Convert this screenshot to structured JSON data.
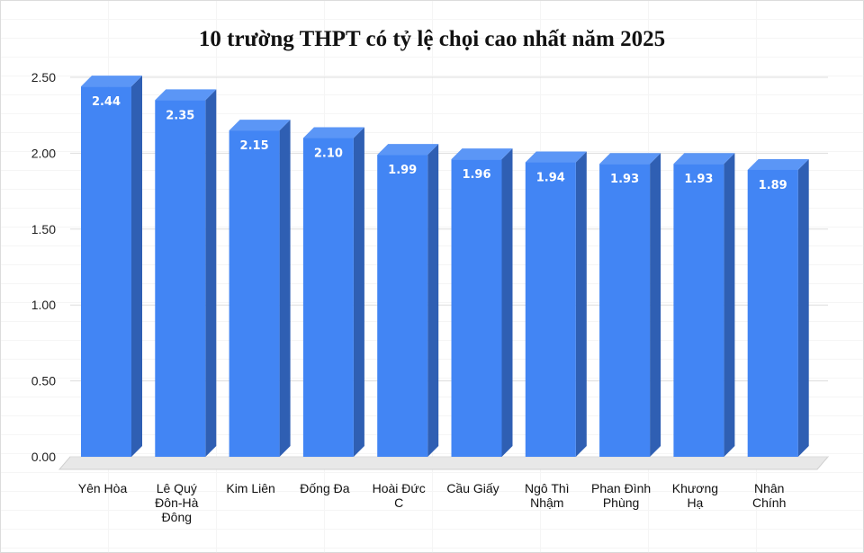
{
  "chart_data": {
    "type": "bar",
    "title": "10 trường THPT có tỷ lệ chọi cao nhất năm 2025",
    "categories": [
      [
        "Yên Hòa"
      ],
      [
        "Lê Quý",
        "Đôn-Hà",
        "Đông"
      ],
      [
        "Kim Liên"
      ],
      [
        "Đống Đa"
      ],
      [
        "Hoài Đức",
        "C"
      ],
      [
        "Cầu Giấy"
      ],
      [
        "Ngô Thì",
        "Nhậm"
      ],
      [
        "Phan Đình",
        "Phùng"
      ],
      [
        "Khương",
        "Hạ"
      ],
      [
        "Nhân",
        "Chính"
      ]
    ],
    "values": [
      2.44,
      2.35,
      2.15,
      2.1,
      1.99,
      1.96,
      1.94,
      1.93,
      1.93,
      1.89
    ],
    "data_labels": [
      "2.44",
      "2.35",
      "2.15",
      "2.10",
      "1.99",
      "1.96",
      "1.94",
      "1.93",
      "1.93",
      "1.89"
    ],
    "y_ticks": [
      "0.00",
      "0.50",
      "1.00",
      "1.50",
      "2.00",
      "2.50"
    ],
    "ylim": [
      0,
      2.5
    ],
    "grid": true,
    "legend": "none",
    "style": "3d-column",
    "colors": {
      "bar_front": "#4285f4",
      "bar_side": "#2f5fb3",
      "bar_top": "#5b96f6",
      "floor": "#e8e8e8",
      "gridline": "#dddddd"
    }
  }
}
